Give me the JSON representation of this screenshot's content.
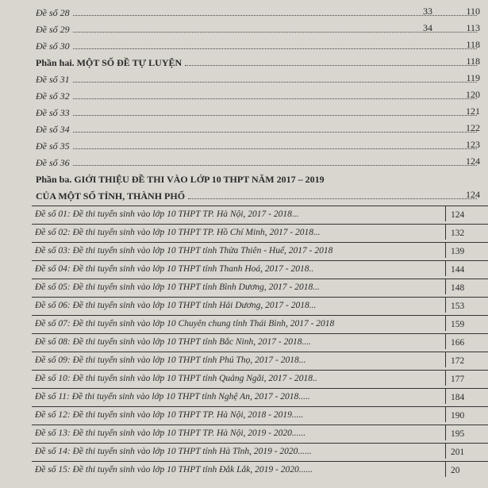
{
  "top_entries": [
    {
      "label": "Đề số 28",
      "sub": "33",
      "page": "110"
    },
    {
      "label": "Đề số 29",
      "sub": "34",
      "page": "113"
    },
    {
      "label": "Đề số 30",
      "page": "118"
    }
  ],
  "part2": {
    "title": "Phần hai. MỘT SỐ ĐỀ TỰ LUYỆN",
    "page": "118"
  },
  "part2_entries": [
    {
      "label": "Đề số 31",
      "page": "119"
    },
    {
      "label": "Đề số 32",
      "page": "120"
    },
    {
      "label": "Đề số 33",
      "page": "121"
    },
    {
      "label": "Đề số 34",
      "page": "122"
    },
    {
      "label": "Đề số 35",
      "page": "123"
    },
    {
      "label": "Đề số 36",
      "page": "124"
    }
  ],
  "part3": {
    "title_lines": [
      "Phần ba. GIỚI THIỆU ĐỀ THI VÀO LỚP 10 THPT NĂM 2017 – 2019",
      "CỦA MỘT SỐ TỈNH, THÀNH PHỐ"
    ],
    "page": "124"
  },
  "table": {
    "rows": [
      {
        "label": "Đề số 01: Đề thi tuyển sinh vào lớp 10 THPT TP. Hà Nội, 2017 - 2018...",
        "page": "124"
      },
      {
        "label": "Đề số 02: Đề thi tuyển sinh vào lớp 10 THPT TP. Hồ Chí Minh, 2017 - 2018...",
        "page": "132"
      },
      {
        "label": "Đề số 03: Đề thi tuyển sinh vào lớp 10 THPT tỉnh Thừa Thiên - Huế, 2017 - 2018",
        "page": "139"
      },
      {
        "label": "Đề số 04: Đề thi tuyển sinh vào lớp 10 THPT tỉnh Thanh Hoá, 2017 - 2018..",
        "page": "144"
      },
      {
        "label": "Đề số 05: Đề thi tuyển sinh vào lớp 10 THPT tỉnh Bình Dương, 2017 - 2018...",
        "page": "148"
      },
      {
        "label": "Đề số 06: Đề thi tuyển sinh vào lớp 10 THPT tỉnh Hải Dương, 2017 - 2018...",
        "page": "153"
      },
      {
        "label": "Đề số 07: Đề thi tuyển sinh vào lớp 10 Chuyên chung tỉnh Thái Bình, 2017 - 2018",
        "page": "159"
      },
      {
        "label": "Đề số 08: Đề thi tuyển sinh vào lớp 10 THPT tỉnh Bắc Ninh, 2017 - 2018....",
        "page": "166"
      },
      {
        "label": "Đề số 09: Đề thi tuyển sinh vào lớp 10 THPT tỉnh Phú Thọ, 2017 - 2018...",
        "page": "172"
      },
      {
        "label": "Đề số 10: Đề thi tuyển sinh vào lớp 10 THPT tỉnh Quảng Ngãi, 2017 - 2018..",
        "page": "177"
      },
      {
        "label": "Đề số 11: Đề thi tuyển sinh vào lớp 10 THPT tỉnh Nghệ An, 2017 - 2018.....",
        "page": "184"
      },
      {
        "label": "Đề số 12: Đề thi tuyển sinh vào lớp 10 THPT TP. Hà Nội, 2018 - 2019.....",
        "page": "190"
      },
      {
        "label": "Đề số 13: Đề thi tuyển sinh vào lớp 10 THPT TP. Hà Nội, 2019 - 2020......",
        "page": "195"
      },
      {
        "label": "Đề số 14: Đề thi tuyển sinh vào lớp 10 THPT tỉnh Hà Tĩnh, 2019 - 2020......",
        "page": "201"
      },
      {
        "label": "Đề số 15: Đề thi tuyển sinh vào lớp 10 THPT tỉnh Đắk Lắk, 2019 - 2020......",
        "page": "20"
      }
    ]
  }
}
